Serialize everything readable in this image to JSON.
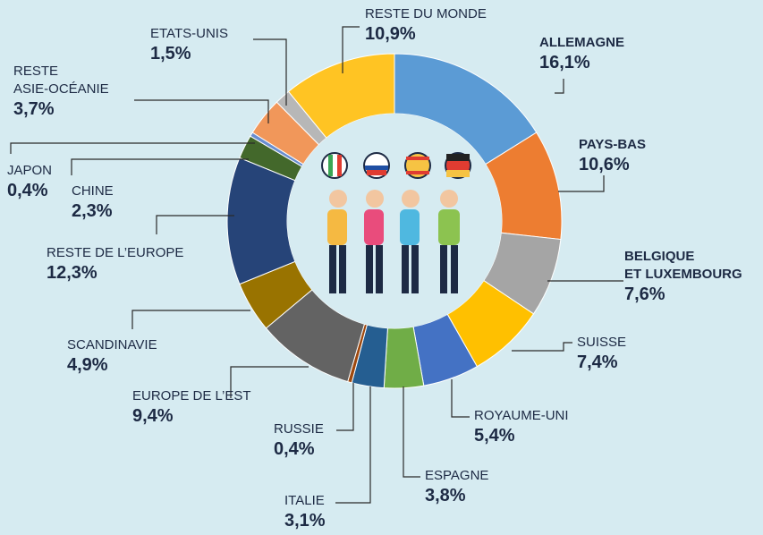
{
  "chart_data": {
    "type": "pie",
    "categories": [
      "ALLEMAGNE",
      "PAYS-BAS",
      "BELGIQUE\nET LUXEMBOURG",
      "SUISSE",
      "ROYAUME-UNI",
      "ESPAGNE",
      "ITALIE",
      "RUSSIE",
      "EUROPE DE L’EST",
      "SCANDINAVIE",
      "RESTE DE L’EUROPE",
      "CHINE",
      "JAPON",
      "RESTE\nASIE-OCÉANIE",
      "ETATS-UNIS",
      "RESTE DU MONDE"
    ],
    "values": [
      16.1,
      10.6,
      7.6,
      7.4,
      5.4,
      3.8,
      3.1,
      0.4,
      9.4,
      4.9,
      12.3,
      2.3,
      0.4,
      3.7,
      1.5,
      10.9
    ],
    "value_labels": [
      "16,1%",
      "10,6%",
      "7,6%",
      "7,4%",
      "5,4%",
      "3,8%",
      "3,1%",
      "0,4%",
      "9,4%",
      "4,9%",
      "12,3%",
      "2,3%",
      "0,4%",
      "3,7%",
      "1,5%",
      "10,9%"
    ],
    "colors": [
      "#5b9bd5",
      "#ed7d31",
      "#a5a5a5",
      "#ffc000",
      "#4472c4",
      "#70ad47",
      "#255e91",
      "#9e480e",
      "#636363",
      "#997300",
      "#264478",
      "#43682b",
      "#698ed0",
      "#f1975a",
      "#b7b7b7",
      "#ffc423"
    ]
  }
}
